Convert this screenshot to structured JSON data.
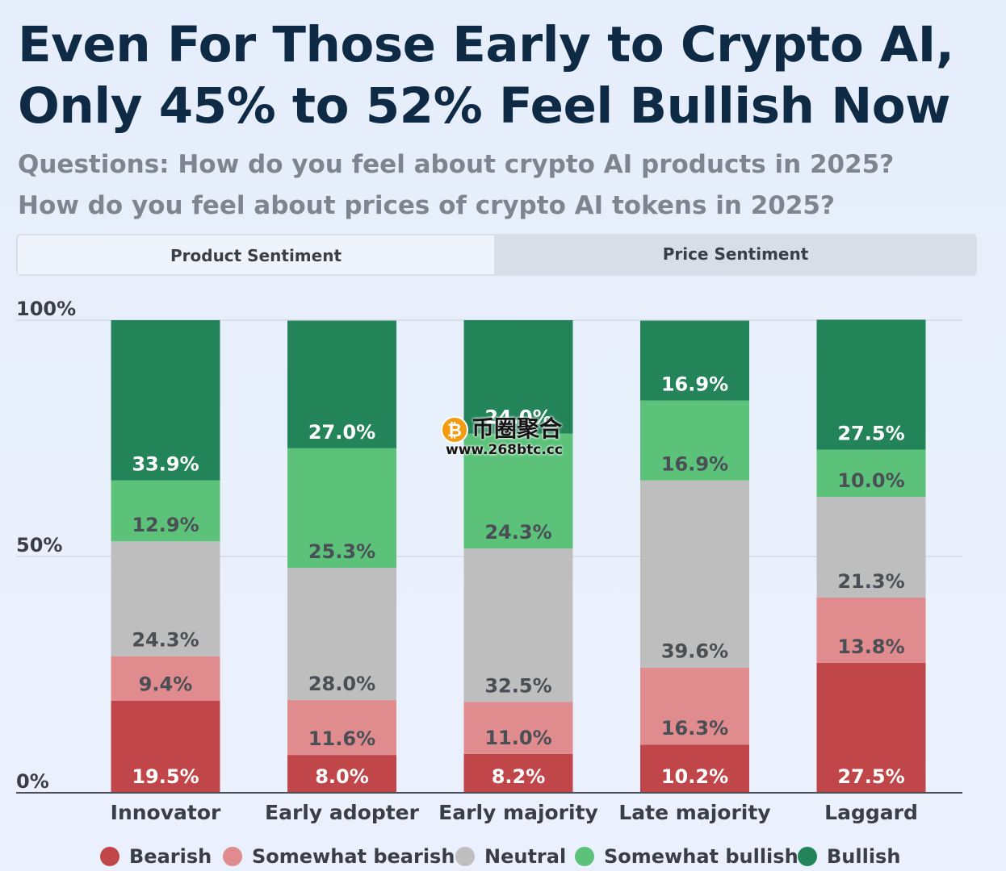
{
  "title_line1": "Even For Those Early to Crypto AI,",
  "title_line2": "Only 45% to 52% Feel Bullish Now",
  "question_line1": "Questions: How do you feel about crypto AI products in 2025?",
  "question_line2": "How do you feel about prices of crypto AI tokens in 2025?",
  "tabs": [
    {
      "label": "Product Sentiment",
      "active": true
    },
    {
      "label": "Price Sentiment",
      "active": false
    }
  ],
  "watermark": {
    "chinese": "币圈聚合",
    "url": "www.268btc.cc",
    "coin_glyph": "₿"
  },
  "chart_data": {
    "type": "bar",
    "stacked": true,
    "categories": [
      "Innovator",
      "Early adopter",
      "Early majority",
      "Late majority",
      "Laggard"
    ],
    "series": [
      {
        "name": "Bearish",
        "color": "#c0464a",
        "label_color": "#ffffff",
        "values": [
          19.5,
          8.0,
          8.2,
          10.2,
          27.5
        ]
      },
      {
        "name": "Somewhat bearish",
        "color": "#e08b8d",
        "label_color": "#4a4f56",
        "values": [
          9.4,
          11.6,
          11.0,
          16.3,
          13.8
        ]
      },
      {
        "name": "Neutral",
        "color": "#bebebe",
        "label_color": "#4a4f56",
        "values": [
          24.3,
          28.0,
          32.5,
          39.6,
          21.3
        ]
      },
      {
        "name": "Somewhat bullish",
        "color": "#5cc27a",
        "label_color": "#4a4f56",
        "values": [
          12.9,
          25.3,
          24.3,
          16.9,
          10.0
        ]
      },
      {
        "name": "Bullish",
        "color": "#238459",
        "label_color": "#ffffff",
        "values": [
          33.9,
          27.0,
          24.0,
          16.9,
          27.5
        ]
      }
    ],
    "yticks": [
      {
        "value": 100,
        "label": "100%"
      },
      {
        "value": 50,
        "label": "50%"
      },
      {
        "value": 0,
        "label": "0%"
      }
    ],
    "ylim": [
      0,
      100
    ],
    "value_suffix": "%",
    "legend_position": "bottom",
    "grid": true
  }
}
